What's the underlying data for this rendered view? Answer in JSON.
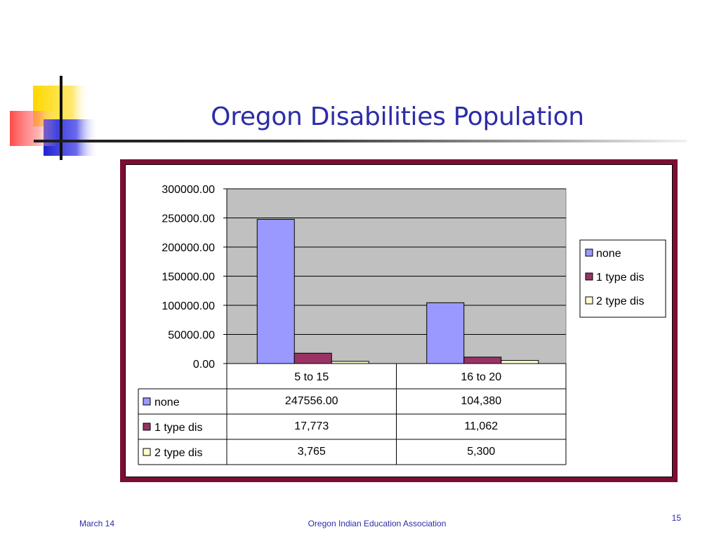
{
  "slide": {
    "title": "Oregon Disabilities Population",
    "footer_left": "March 14",
    "footer_center": "Oregon Indian Education Association",
    "page_number": "15"
  },
  "colors": {
    "title": "#2c2ca8",
    "frame": "#7a0f33",
    "plot_bg": "#c0c0c0",
    "deco_yellow": "#ffd800",
    "deco_red": "#ff3030",
    "deco_blue": "#2a2ad6"
  },
  "chart_data": {
    "type": "bar",
    "categories": [
      "5 to 15",
      "16 to 20"
    ],
    "series": [
      {
        "name": "none",
        "values": [
          247556,
          104380
        ],
        "labels": [
          "247556.00",
          "104,380"
        ],
        "color": "#9999ff"
      },
      {
        "name": "1 type dis",
        "values": [
          17773,
          11062
        ],
        "labels": [
          "17,773",
          "11,062"
        ],
        "color": "#993366"
      },
      {
        "name": "2 type dis",
        "values": [
          3765,
          5300
        ],
        "labels": [
          "3,765",
          "5,300"
        ],
        "color": "#ffffcc"
      }
    ],
    "ylim": [
      0,
      300000
    ],
    "yticks": [
      "0.00",
      "50000.00",
      "100000.00",
      "150000.00",
      "200000.00",
      "250000.00",
      "300000.00"
    ],
    "grid": true,
    "legend": "right",
    "data_table": true
  }
}
